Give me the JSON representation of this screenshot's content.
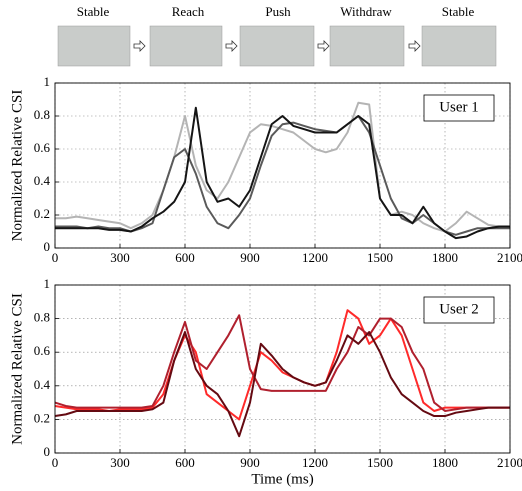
{
  "stages": [
    "Stable",
    "Reach",
    "Push",
    "Withdraw",
    "Stable"
  ],
  "chart_data": [
    {
      "type": "line",
      "ylabel": "Normalized Relative CSI",
      "annotation": "User 1",
      "xlim": [
        0,
        2100
      ],
      "xticks": [
        0,
        300,
        600,
        900,
        1200,
        1500,
        1800,
        2100
      ],
      "ylim": [
        0,
        1
      ],
      "yticks": [
        0,
        0.2,
        0.4,
        0.6,
        0.8,
        1
      ],
      "grid": true,
      "x": [
        0,
        50,
        100,
        150,
        200,
        250,
        300,
        350,
        400,
        450,
        500,
        550,
        600,
        650,
        700,
        750,
        800,
        850,
        900,
        950,
        1000,
        1050,
        1100,
        1150,
        1200,
        1250,
        1300,
        1350,
        1400,
        1450,
        1500,
        1550,
        1600,
        1650,
        1700,
        1750,
        1800,
        1850,
        1900,
        1950,
        2000,
        2050,
        2100
      ],
      "series": [
        {
          "color": "#b4b4b4",
          "values": [
            0.18,
            0.18,
            0.19,
            0.18,
            0.17,
            0.16,
            0.15,
            0.12,
            0.15,
            0.2,
            0.35,
            0.55,
            0.8,
            0.5,
            0.35,
            0.3,
            0.4,
            0.55,
            0.7,
            0.75,
            0.74,
            0.72,
            0.7,
            0.65,
            0.6,
            0.58,
            0.6,
            0.7,
            0.88,
            0.87,
            0.3,
            0.2,
            0.22,
            0.2,
            0.15,
            0.12,
            0.1,
            0.15,
            0.22,
            0.18,
            0.14,
            0.13,
            0.13
          ]
        },
        {
          "color": "#5a5a5a",
          "values": [
            0.13,
            0.13,
            0.13,
            0.12,
            0.13,
            0.12,
            0.12,
            0.1,
            0.12,
            0.15,
            0.35,
            0.55,
            0.6,
            0.45,
            0.25,
            0.15,
            0.12,
            0.2,
            0.3,
            0.5,
            0.68,
            0.75,
            0.76,
            0.74,
            0.72,
            0.71,
            0.7,
            0.75,
            0.8,
            0.7,
            0.5,
            0.3,
            0.18,
            0.15,
            0.2,
            0.15,
            0.1,
            0.08,
            0.1,
            0.12,
            0.12,
            0.12,
            0.12
          ]
        },
        {
          "color": "#151515",
          "values": [
            0.12,
            0.12,
            0.12,
            0.12,
            0.12,
            0.11,
            0.11,
            0.1,
            0.13,
            0.18,
            0.22,
            0.28,
            0.4,
            0.85,
            0.4,
            0.28,
            0.3,
            0.25,
            0.35,
            0.55,
            0.75,
            0.8,
            0.74,
            0.72,
            0.7,
            0.7,
            0.7,
            0.75,
            0.8,
            0.75,
            0.3,
            0.2,
            0.2,
            0.15,
            0.25,
            0.15,
            0.1,
            0.06,
            0.07,
            0.1,
            0.12,
            0.13,
            0.13
          ]
        }
      ]
    },
    {
      "type": "line",
      "ylabel": "Normalized Relative CSI",
      "xlabel": "Time (ms)",
      "annotation": "User 2",
      "xlim": [
        0,
        2100
      ],
      "xticks": [
        0,
        300,
        600,
        900,
        1200,
        1500,
        1800,
        2100
      ],
      "ylim": [
        0,
        1
      ],
      "yticks": [
        0,
        0.2,
        0.4,
        0.6,
        0.8,
        1
      ],
      "grid": true,
      "x": [
        0,
        50,
        100,
        150,
        200,
        250,
        300,
        350,
        400,
        450,
        500,
        550,
        600,
        650,
        700,
        750,
        800,
        850,
        900,
        950,
        1000,
        1050,
        1100,
        1150,
        1200,
        1250,
        1300,
        1350,
        1400,
        1450,
        1500,
        1550,
        1600,
        1650,
        1700,
        1750,
        1800,
        1850,
        1900,
        1950,
        2000,
        2050,
        2100
      ],
      "series": [
        {
          "color": "#ff2a2a",
          "values": [
            0.28,
            0.27,
            0.26,
            0.26,
            0.26,
            0.25,
            0.26,
            0.26,
            0.26,
            0.27,
            0.35,
            0.55,
            0.7,
            0.6,
            0.35,
            0.3,
            0.25,
            0.2,
            0.4,
            0.6,
            0.55,
            0.48,
            0.45,
            0.42,
            0.4,
            0.42,
            0.6,
            0.85,
            0.8,
            0.65,
            0.7,
            0.8,
            0.7,
            0.5,
            0.3,
            0.25,
            0.27,
            0.27,
            0.27,
            0.27,
            0.27,
            0.27,
            0.27
          ]
        },
        {
          "color": "#b0202e",
          "values": [
            0.3,
            0.28,
            0.27,
            0.27,
            0.27,
            0.27,
            0.27,
            0.27,
            0.27,
            0.28,
            0.4,
            0.6,
            0.78,
            0.55,
            0.5,
            0.6,
            0.7,
            0.82,
            0.5,
            0.38,
            0.37,
            0.37,
            0.37,
            0.37,
            0.37,
            0.37,
            0.5,
            0.6,
            0.75,
            0.7,
            0.8,
            0.8,
            0.75,
            0.6,
            0.5,
            0.3,
            0.25,
            0.26,
            0.27,
            0.27,
            0.27,
            0.27,
            0.27
          ]
        },
        {
          "color": "#650a12",
          "values": [
            0.22,
            0.23,
            0.25,
            0.25,
            0.25,
            0.25,
            0.25,
            0.25,
            0.25,
            0.26,
            0.3,
            0.55,
            0.72,
            0.5,
            0.4,
            0.35,
            0.25,
            0.1,
            0.3,
            0.65,
            0.58,
            0.5,
            0.45,
            0.42,
            0.4,
            0.42,
            0.55,
            0.7,
            0.65,
            0.72,
            0.6,
            0.45,
            0.35,
            0.3,
            0.25,
            0.22,
            0.22,
            0.24,
            0.25,
            0.26,
            0.27,
            0.27,
            0.27
          ]
        }
      ]
    }
  ]
}
